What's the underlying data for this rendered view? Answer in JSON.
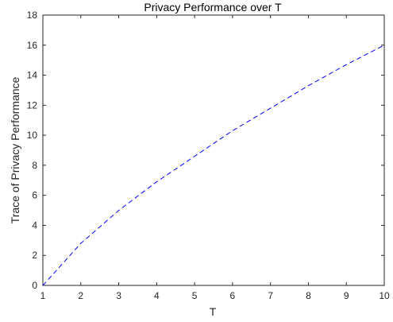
{
  "chart_data": {
    "type": "line",
    "title": "Privacy Performance over T",
    "xlabel": "T",
    "ylabel": "Trace of Privacy Performance",
    "xlim": [
      1,
      10
    ],
    "ylim": [
      0,
      18
    ],
    "xticks": [
      "1",
      "2",
      "3",
      "4",
      "5",
      "6",
      "7",
      "8",
      "9",
      "10"
    ],
    "yticks": [
      "0",
      "2",
      "4",
      "6",
      "8",
      "10",
      "12",
      "14",
      "16",
      "18"
    ],
    "grid": false,
    "line_style": "dashed",
    "series": [
      {
        "color": "#0000ff",
        "x": [
          1,
          2,
          3,
          4,
          5,
          6,
          7,
          8,
          9,
          10
        ],
        "y": [
          0,
          2.8,
          5.0,
          6.9,
          8.6,
          10.3,
          11.8,
          13.3,
          14.7,
          16.0
        ]
      }
    ]
  }
}
